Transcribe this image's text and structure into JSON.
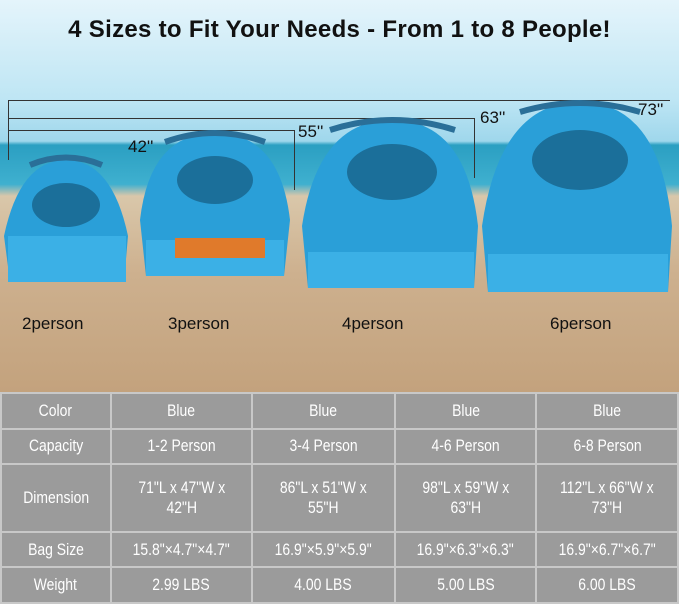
{
  "title": "4 Sizes to Fit Your Needs - From 1 to 8 People!",
  "heights": [
    "42''",
    "55''",
    "63''",
    "73''"
  ],
  "sizes": [
    "2person",
    "3person",
    "4person",
    "6person"
  ],
  "colors": {
    "tent": "#2a9fd8",
    "table": "#9b9b9b"
  },
  "table": {
    "rows": [
      {
        "label": "Color",
        "values": [
          "Blue",
          "Blue",
          "Blue",
          "Blue"
        ]
      },
      {
        "label": "Capacity",
        "values": [
          "1-2 Person",
          "3-4 Person",
          "4-6 Person",
          "6-8 Person"
        ]
      },
      {
        "label": "Dimension",
        "values": [
          "71\"L x 47\"W x 42\"H",
          "86\"L x 51\"W x 55\"H",
          "98\"L x 59\"W x 63\"H",
          "112\"L x 66\"W x 73\"H"
        ]
      },
      {
        "label": "Bag Size",
        "values": [
          "15.8\"×4.7\"×4.7\"",
          "16.9\"×5.9\"×5.9\"",
          "16.9\"×6.3\"×6.3\"",
          "16.9\"×6.7\"×6.7\""
        ]
      },
      {
        "label": "Weight",
        "values": [
          "2.99 LBS",
          "4.00 LBS",
          "5.00 LBS",
          "6.00 LBS"
        ]
      }
    ]
  }
}
